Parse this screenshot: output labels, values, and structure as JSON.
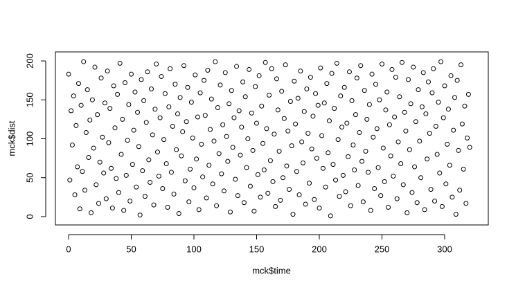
{
  "chart_data": {
    "type": "scatter",
    "title": null,
    "x_label": "mck$time",
    "y_label": "mck$dist",
    "x": [
      0,
      1,
      2,
      3,
      4,
      5,
      6,
      7,
      8,
      9,
      10,
      11,
      12,
      13,
      14,
      15,
      16,
      17,
      18,
      19,
      20,
      21,
      22,
      23,
      24,
      25,
      26,
      27,
      28,
      29,
      30,
      31,
      32,
      33,
      34,
      35,
      36,
      37,
      38,
      39,
      40,
      41,
      42,
      43,
      44,
      45,
      46,
      47,
      48,
      49,
      50,
      51,
      52,
      53,
      54,
      55,
      56,
      57,
      58,
      59,
      60,
      61,
      62,
      63,
      64,
      65,
      66,
      67,
      68,
      69,
      70,
      71,
      72,
      73,
      74,
      75,
      76,
      77,
      78,
      79,
      80,
      81,
      82,
      83,
      84,
      85,
      86,
      87,
      88,
      89,
      90,
      91,
      92,
      93,
      94,
      95,
      96,
      97,
      98,
      99,
      100,
      101,
      102,
      103,
      104,
      105,
      106,
      107,
      108,
      109,
      110,
      111,
      112,
      113,
      114,
      115,
      116,
      117,
      118,
      119,
      120,
      121,
      122,
      123,
      124,
      125,
      126,
      127,
      128,
      129,
      130,
      131,
      132,
      133,
      134,
      135,
      136,
      137,
      138,
      139,
      140,
      141,
      142,
      143,
      144,
      145,
      146,
      147,
      148,
      149,
      150,
      151,
      152,
      153,
      154,
      155,
      156,
      157,
      158,
      159,
      160,
      161,
      162,
      163,
      164,
      165,
      166,
      167,
      168,
      169,
      170,
      171,
      172,
      173,
      174,
      175,
      176,
      177,
      178,
      179,
      180,
      181,
      182,
      183,
      184,
      185,
      186,
      187,
      188,
      189,
      190,
      191,
      192,
      193,
      194,
      195,
      196,
      197,
      198,
      199,
      200,
      201,
      202,
      203,
      204,
      205,
      206,
      207,
      208,
      209,
      210,
      211,
      212,
      213,
      214,
      215,
      216,
      217,
      218,
      219,
      220,
      221,
      222,
      223,
      224,
      225,
      226,
      227,
      228,
      229,
      230,
      231,
      232,
      233,
      234,
      235,
      236,
      237,
      238,
      239,
      240,
      241,
      242,
      243,
      244,
      245,
      246,
      247,
      248,
      249,
      250,
      251,
      252,
      253,
      254,
      255,
      256,
      257,
      258,
      259,
      260,
      261,
      262,
      263,
      264,
      265,
      266,
      267,
      268,
      269,
      270,
      271,
      272,
      273,
      274,
      275,
      276,
      277,
      278,
      279,
      280,
      281,
      282,
      283,
      284,
      285,
      286,
      287,
      288,
      289,
      290,
      291,
      292,
      293,
      294,
      295,
      296,
      297,
      298,
      299,
      300,
      301,
      302,
      303,
      304,
      305,
      306,
      307,
      308,
      309,
      310,
      311,
      312,
      313,
      314,
      315,
      316,
      317,
      318,
      319,
      320
    ],
    "values": [
      183,
      47,
      136,
      92,
      155,
      28,
      117,
      64,
      171,
      10,
      143,
      58,
      199,
      34,
      108,
      163,
      76,
      124,
      5,
      150,
      88,
      192,
      41,
      131,
      17,
      70,
      178,
      102,
      56,
      146,
      23,
      187,
      95,
      139,
      62,
      11,
      168,
      114,
      49,
      157,
      31,
      197,
      80,
      125,
      8,
      172,
      53,
      98,
      144,
      20,
      183,
      67,
      111,
      160,
      38,
      134,
      90,
      2,
      176,
      59,
      149,
      26,
      121,
      186,
      73,
      44,
      164,
      105,
      15,
      138,
      196,
      83,
      52,
      127,
      180,
      36,
      99,
      158,
      68,
      12,
      141,
      190,
      57,
      116,
      29,
      170,
      86,
      132,
      4,
      153,
      78,
      109,
      194,
      46,
      122,
      166,
      19,
      61,
      147,
      101,
      37,
      182,
      74,
      128,
      9,
      159,
      93,
      51,
      175,
      130,
      24,
      188,
      66,
      112,
      151,
      42,
      97,
      199,
      14,
      140,
      81,
      169,
      55,
      118,
      33,
      185,
      103,
      71,
      145,
      6,
      162,
      89,
      127,
      48,
      193,
      27,
      136,
      79,
      115,
      173,
      18,
      154,
      63,
      100,
      189,
      39,
      133,
      85,
      7,
      167,
      120,
      54,
      181,
      25,
      142,
      94,
      60,
      198,
      113,
      30,
      156,
      72,
      190,
      45,
      106,
      13,
      177,
      137,
      84,
      21,
      161,
      50,
      126,
      195,
      65,
      110,
      35,
      148,
      91,
      3,
      174,
      119,
      58,
      152,
      28,
      187,
      96,
      69,
      135,
      16,
      164,
      107,
      43,
      179,
      87,
      129,
      22,
      158,
      75,
      143,
      11,
      191,
      104,
      62,
      146,
      38,
      171,
      82,
      123,
      1,
      184,
      67,
      139,
      47,
      197,
      99,
      26,
      155,
      115,
      53,
      166,
      32,
      120,
      77,
      186,
      14,
      149,
      92,
      60,
      131,
      178,
      40,
      108,
      194,
      71,
      19,
      162,
      84,
      125,
      57,
      144,
      8,
      183,
      102,
      36,
      170,
      113,
      63,
      150,
      27,
      196,
      88,
      45,
      137,
      160,
      12,
      118,
      78,
      189,
      52,
      128,
      179,
      23,
      96,
      154,
      68,
      198,
      41,
      134,
      110,
      5,
      176,
      86,
      145,
      31,
      192,
      64,
      122,
      18,
      163,
      97,
      50,
      141,
      185,
      9,
      132,
      74,
      173,
      107,
      35,
      159,
      190,
      20,
      116,
      80,
      147,
      56,
      199,
      13,
      127,
      168,
      42,
      93,
      138,
      66,
      181,
      25,
      111,
      153,
      3,
      175,
      85,
      34,
      195,
      119,
      61,
      142,
      17,
      101,
      157,
      89
    ],
    "color": "#000000",
    "xlim": [
      -10.5,
      334.8
    ],
    "ylim": [
      -10.7,
      211.6
    ],
    "xticks": [
      0,
      50,
      100,
      150,
      200,
      250,
      300
    ],
    "yticks": [
      0,
      50,
      100,
      150,
      200
    ]
  }
}
